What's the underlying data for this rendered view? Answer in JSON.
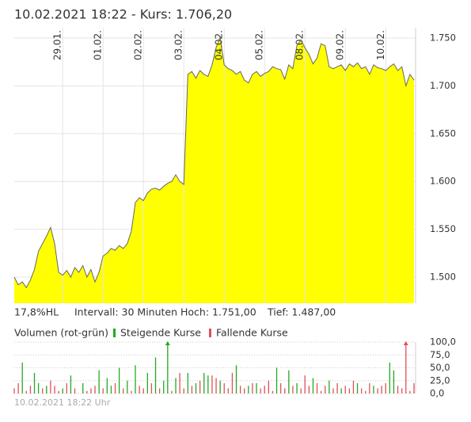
{
  "header": {
    "title": "10.02.2021 18:22  -  Kurs: 1.706,20"
  },
  "info": [
    "17,8%HL",
    "Intervall: 30 Minuten",
    "Hoch: 1.751,00",
    "Tief: 1.487,00"
  ],
  "footer": "10.02.2021 18:22 Uhr",
  "chart_data": [
    {
      "type": "area",
      "fill": "#ffff00",
      "line_color": "#666666",
      "grid": true,
      "values": [
        1.5,
        1.492,
        1.495,
        1.489,
        1.497,
        1.508,
        1.527,
        1.535,
        1.543,
        1.552,
        1.535,
        1.505,
        1.502,
        1.507,
        1.5,
        1.51,
        1.505,
        1.512,
        1.5,
        1.508,
        1.495,
        1.505,
        1.522,
        1.525,
        1.53,
        1.528,
        1.533,
        1.53,
        1.535,
        1.548,
        1.578,
        1.583,
        1.58,
        1.588,
        1.592,
        1.593,
        1.591,
        1.595,
        1.598,
        1.6,
        1.607,
        1.6,
        1.597,
        1.712,
        1.715,
        1.708,
        1.716,
        1.712,
        1.71,
        1.722,
        1.74,
        1.751,
        1.722,
        1.718,
        1.716,
        1.712,
        1.715,
        1.706,
        1.703,
        1.712,
        1.715,
        1.71,
        1.713,
        1.715,
        1.72,
        1.718,
        1.717,
        1.707,
        1.722,
        1.718,
        1.742,
        1.748,
        1.74,
        1.733,
        1.723,
        1.729,
        1.744,
        1.742,
        1.72,
        1.718,
        1.72,
        1.722,
        1.716,
        1.723,
        1.72,
        1.724,
        1.718,
        1.72,
        1.712,
        1.722,
        1.719,
        1.718,
        1.716,
        1.72,
        1.723,
        1.716,
        1.72,
        1.7,
        1.712,
        1.706
      ],
      "xlim": [
        0,
        99.4
      ],
      "xticks": [
        {
          "value": 12,
          "label": "29.01."
        },
        {
          "value": 22,
          "label": "01.02."
        },
        {
          "value": 32,
          "label": "02.02."
        },
        {
          "value": 42,
          "label": "03.02."
        },
        {
          "value": 52,
          "label": "04.02."
        },
        {
          "value": 62,
          "label": "05.02."
        },
        {
          "value": 72,
          "label": "08.02."
        },
        {
          "value": 82,
          "label": "09.02."
        },
        {
          "value": 92,
          "label": "10.02."
        }
      ],
      "ylim": [
        1.4727,
        1.7608
      ],
      "yticks": [
        {
          "value": 1.5,
          "label": "1.500"
        },
        {
          "value": 1.55,
          "label": "1.550"
        },
        {
          "value": 1.6,
          "label": "1.600"
        },
        {
          "value": 1.65,
          "label": "1.650"
        },
        {
          "value": 1.7,
          "label": "1.700"
        },
        {
          "value": 1.75,
          "label": "1.750"
        }
      ]
    },
    {
      "type": "volume",
      "title": "Volumen (rot-grün)",
      "xlim": [
        0,
        99.4
      ],
      "ylim": [
        0,
        100
      ],
      "yticks": [
        {
          "value": 0,
          "label": "0,0"
        },
        {
          "value": 25,
          "label": "25,0"
        },
        {
          "value": 50,
          "label": "50,0"
        },
        {
          "value": 75,
          "label": "75,0"
        },
        {
          "value": 100,
          "label": "100,0"
        }
      ],
      "series": [
        {
          "name": "Steigende Kurse",
          "color": "#22aa22",
          "values": [
            null,
            null,
            60,
            null,
            null,
            40,
            20,
            null,
            15,
            null,
            null,
            null,
            10,
            null,
            35,
            null,
            null,
            20,
            null,
            null,
            null,
            45,
            null,
            30,
            15,
            null,
            50,
            null,
            25,
            null,
            55,
            null,
            null,
            40,
            null,
            70,
            null,
            25,
            100,
            null,
            30,
            null,
            null,
            40,
            null,
            20,
            null,
            40,
            35,
            null,
            null,
            25,
            null,
            null,
            null,
            55,
            null,
            null,
            15,
            null,
            20,
            null,
            null,
            null,
            null,
            50,
            null,
            null,
            45,
            null,
            20,
            null,
            null,
            null,
            30,
            null,
            null,
            null,
            25,
            null,
            null,
            10,
            null,
            null,
            null,
            20,
            null,
            null,
            null,
            15,
            null,
            null,
            null,
            60,
            45,
            null,
            null,
            null,
            null,
            null
          ]
        },
        {
          "name": "Fallende Kurse",
          "color": "#e0505a",
          "values": [
            10,
            20,
            null,
            5,
            15,
            null,
            null,
            10,
            null,
            25,
            15,
            5,
            null,
            20,
            null,
            10,
            null,
            null,
            5,
            10,
            15,
            null,
            10,
            null,
            null,
            20,
            null,
            10,
            null,
            5,
            null,
            15,
            10,
            null,
            20,
            null,
            10,
            null,
            null,
            5,
            null,
            40,
            10,
            null,
            15,
            null,
            25,
            null,
            null,
            35,
            30,
            null,
            20,
            10,
            40,
            null,
            15,
            10,
            null,
            20,
            null,
            10,
            15,
            25,
            5,
            null,
            20,
            10,
            null,
            15,
            null,
            10,
            35,
            15,
            null,
            20,
            5,
            15,
            null,
            10,
            20,
            null,
            15,
            10,
            25,
            null,
            10,
            5,
            20,
            null,
            10,
            15,
            20,
            null,
            null,
            15,
            10,
            100,
            5,
            20
          ]
        }
      ]
    }
  ]
}
